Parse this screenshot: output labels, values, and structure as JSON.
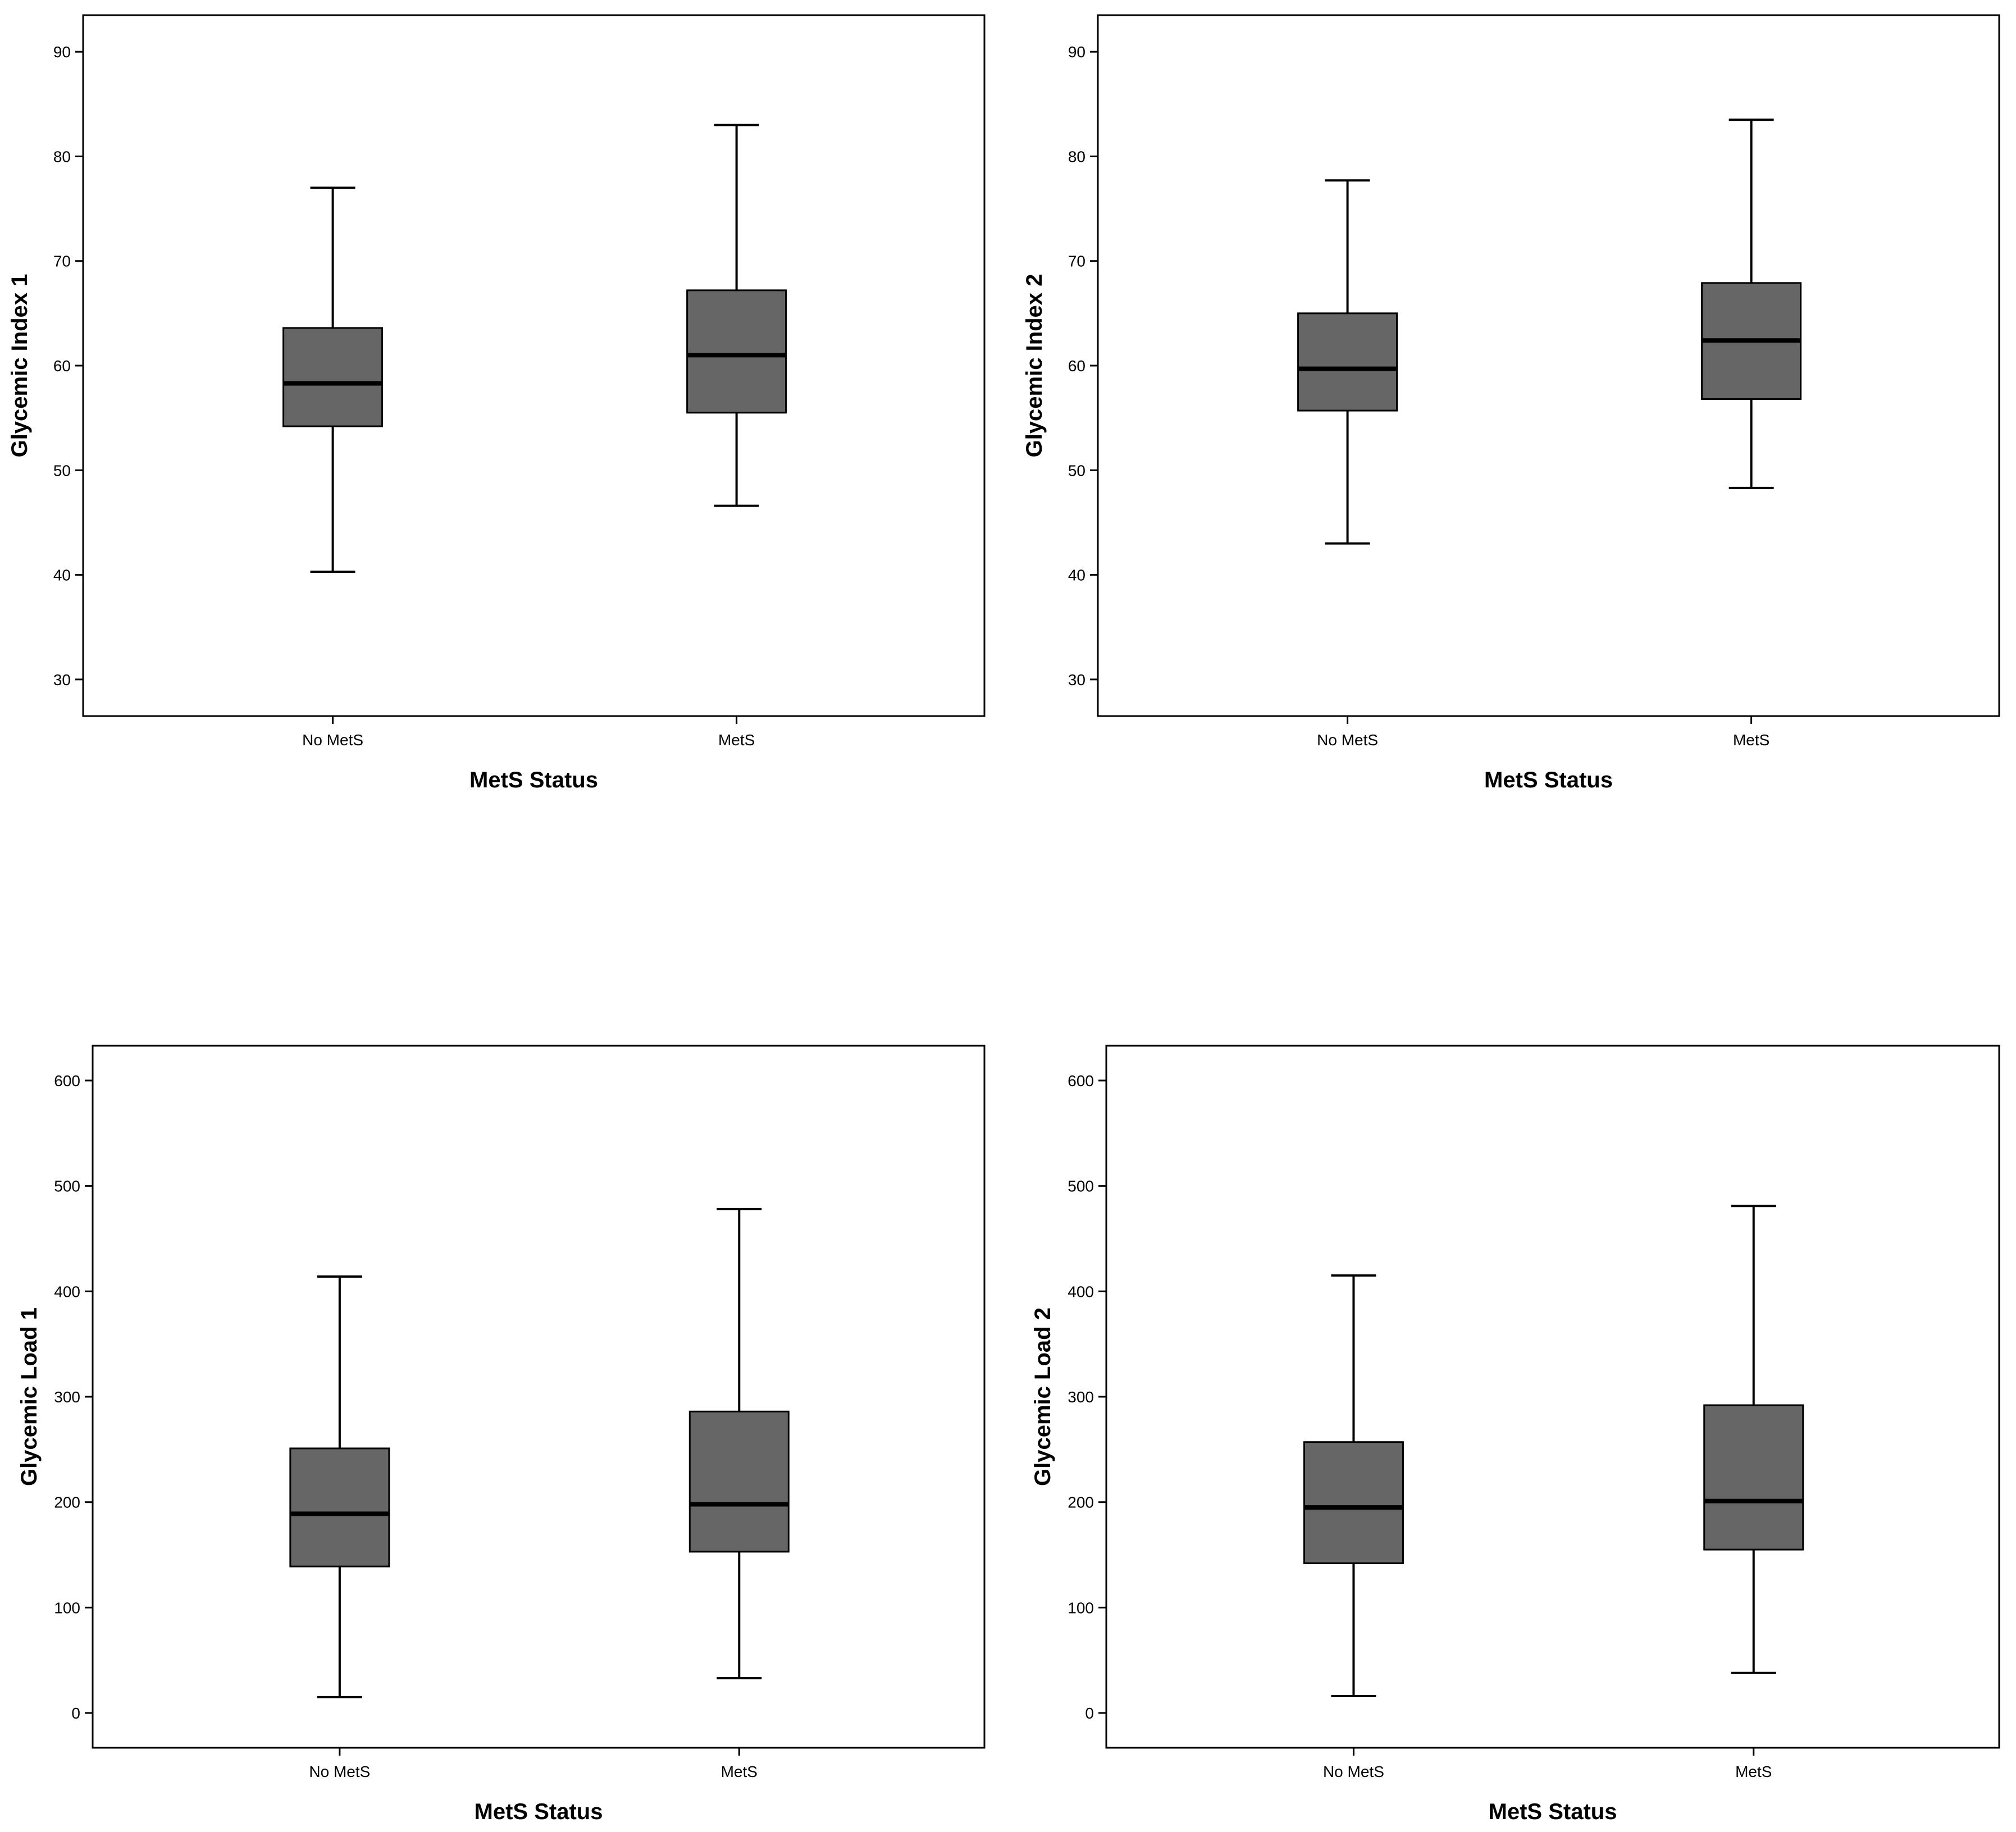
{
  "colors": {
    "box_fill": "#666666",
    "line": "#000000",
    "background": "#ffffff"
  },
  "chart_data": [
    {
      "type": "box",
      "title": "",
      "xlabel": "MetS Status",
      "ylabel": "Glycemic Index 1",
      "ylim": [
        26.5,
        93.5
      ],
      "yticks": [
        30,
        40,
        50,
        60,
        70,
        80,
        90
      ],
      "grid": false,
      "categories": [
        "No MetS",
        "MetS"
      ],
      "boxes": [
        {
          "category": "No MetS",
          "whisker_low": 40.3,
          "q1": 54.2,
          "median": 58.3,
          "q3": 63.6,
          "whisker_high": 77.0
        },
        {
          "category": "MetS",
          "whisker_low": 46.6,
          "q1": 55.5,
          "median": 61.0,
          "q3": 67.2,
          "whisker_high": 83.0
        }
      ]
    },
    {
      "type": "box",
      "title": "",
      "xlabel": "MetS Status",
      "ylabel": "Glycemic Index 2",
      "ylim": [
        26.5,
        93.5
      ],
      "yticks": [
        30,
        40,
        50,
        60,
        70,
        80,
        90
      ],
      "grid": false,
      "categories": [
        "No MetS",
        "MetS"
      ],
      "boxes": [
        {
          "category": "No MetS",
          "whisker_low": 43.0,
          "q1": 55.7,
          "median": 59.7,
          "q3": 65.0,
          "whisker_high": 77.7
        },
        {
          "category": "MetS",
          "whisker_low": 48.3,
          "q1": 56.8,
          "median": 62.4,
          "q3": 67.9,
          "whisker_high": 83.5
        }
      ]
    },
    {
      "type": "box",
      "title": "",
      "xlabel": "MetS Status",
      "ylabel": "Glycemic Load 1",
      "ylim": [
        -33,
        633
      ],
      "yticks": [
        0,
        100,
        200,
        300,
        400,
        500,
        600
      ],
      "grid": false,
      "categories": [
        "No MetS",
        "MetS"
      ],
      "boxes": [
        {
          "category": "No MetS",
          "whisker_low": 15,
          "q1": 139,
          "median": 189,
          "q3": 251,
          "whisker_high": 414
        },
        {
          "category": "MetS",
          "whisker_low": 33,
          "q1": 153,
          "median": 198,
          "q3": 286,
          "whisker_high": 478
        }
      ]
    },
    {
      "type": "box",
      "title": "",
      "xlabel": "MetS Status",
      "ylabel": "Glycemic Load 2",
      "ylim": [
        -33,
        633
      ],
      "yticks": [
        0,
        100,
        200,
        300,
        400,
        500,
        600
      ],
      "grid": false,
      "categories": [
        "No MetS",
        "MetS"
      ],
      "boxes": [
        {
          "category": "No MetS",
          "whisker_low": 16,
          "q1": 142,
          "median": 195,
          "q3": 257,
          "whisker_high": 415
        },
        {
          "category": "MetS",
          "whisker_low": 38,
          "q1": 155,
          "median": 201,
          "q3": 292,
          "whisker_high": 481
        }
      ]
    }
  ]
}
